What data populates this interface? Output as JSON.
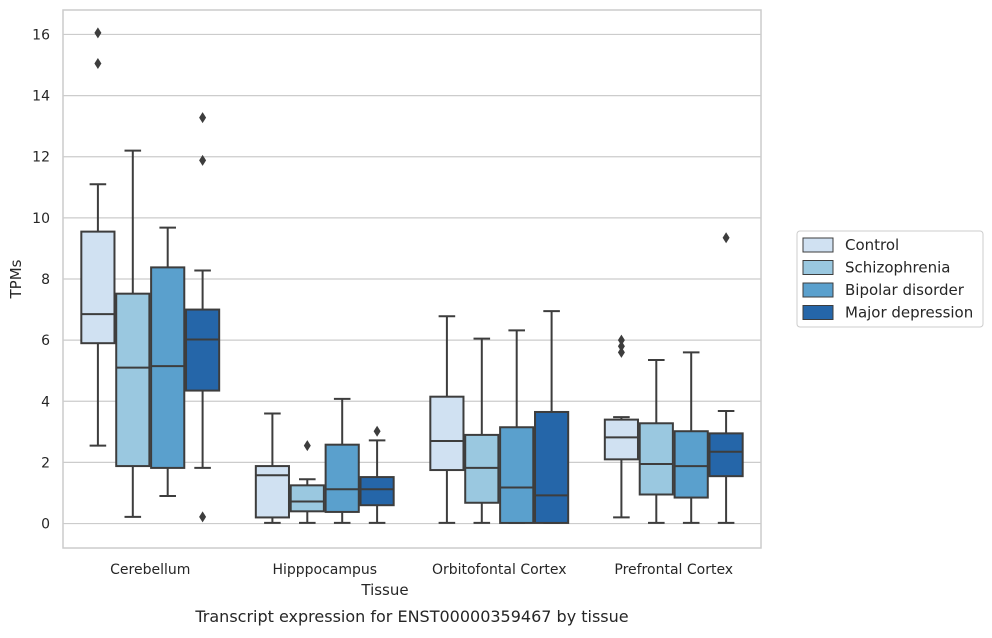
{
  "chart_data": {
    "type": "boxplot",
    "xlabel": "Tissue",
    "ylabel": "TPMs",
    "caption": "Transcript expression for ENST00000359467 by tissue",
    "ylim": [
      -0.8,
      16.8
    ],
    "yticks": [
      0,
      2,
      4,
      6,
      8,
      10,
      12,
      14,
      16
    ],
    "grid": "horizontal",
    "legend_position": "right",
    "categories": [
      "Cerebellum",
      "Hipppocampus",
      "Orbitofontal Cortex",
      "Prefrontal Cortex"
    ],
    "series": [
      {
        "name": "Control",
        "color": "#d0e1f2",
        "boxes": [
          {
            "whislo": 2.55,
            "q1": 5.9,
            "med": 6.85,
            "q3": 9.55,
            "whishi": 11.1,
            "fliers": [
              15.05,
              16.05
            ]
          },
          {
            "whislo": 0.02,
            "q1": 0.2,
            "med": 1.58,
            "q3": 1.88,
            "whishi": 3.6,
            "fliers": []
          },
          {
            "whislo": 0.02,
            "q1": 1.75,
            "med": 2.7,
            "q3": 4.15,
            "whishi": 6.78,
            "fliers": []
          },
          {
            "whislo": 0.2,
            "q1": 2.1,
            "med": 2.82,
            "q3": 3.4,
            "whishi": 3.48,
            "fliers": [
              5.6,
              5.8,
              6.0
            ]
          }
        ]
      },
      {
        "name": "Schizophrenia",
        "color": "#9ac8e0",
        "boxes": [
          {
            "whislo": 0.22,
            "q1": 1.88,
            "med": 5.1,
            "q3": 7.52,
            "whishi": 12.2,
            "fliers": []
          },
          {
            "whislo": 0.02,
            "q1": 0.4,
            "med": 0.72,
            "q3": 1.25,
            "whishi": 1.45,
            "fliers": [
              2.55
            ]
          },
          {
            "whislo": 0.02,
            "q1": 0.68,
            "med": 1.82,
            "q3": 2.9,
            "whishi": 6.05,
            "fliers": []
          },
          {
            "whislo": 0.02,
            "q1": 0.95,
            "med": 1.95,
            "q3": 3.28,
            "whishi": 5.35,
            "fliers": []
          }
        ]
      },
      {
        "name": "Bipolar disorder",
        "color": "#5aa0cd",
        "boxes": [
          {
            "whislo": 0.9,
            "q1": 1.82,
            "med": 5.15,
            "q3": 8.38,
            "whishi": 9.68,
            "fliers": []
          },
          {
            "whislo": 0.02,
            "q1": 0.38,
            "med": 1.12,
            "q3": 2.58,
            "whishi": 4.08,
            "fliers": []
          },
          {
            "whislo": 0.02,
            "q1": 0.02,
            "med": 1.18,
            "q3": 3.15,
            "whishi": 6.32,
            "fliers": []
          },
          {
            "whislo": 0.02,
            "q1": 0.85,
            "med": 1.88,
            "q3": 3.02,
            "whishi": 5.6,
            "fliers": []
          }
        ]
      },
      {
        "name": "Major depression",
        "color": "#2566a9",
        "boxes": [
          {
            "whislo": 1.82,
            "q1": 4.35,
            "med": 6.02,
            "q3": 7.0,
            "whishi": 8.28,
            "fliers": [
              0.22,
              11.88,
              13.28
            ]
          },
          {
            "whislo": 0.02,
            "q1": 0.6,
            "med": 1.12,
            "q3": 1.52,
            "whishi": 2.72,
            "fliers": [
              3.02
            ]
          },
          {
            "whislo": 0.02,
            "q1": 0.02,
            "med": 0.92,
            "q3": 3.65,
            "whishi": 6.95,
            "fliers": []
          },
          {
            "whislo": 0.02,
            "q1": 1.55,
            "med": 2.35,
            "q3": 2.95,
            "whishi": 3.68,
            "fliers": [
              9.35
            ]
          }
        ]
      }
    ]
  }
}
